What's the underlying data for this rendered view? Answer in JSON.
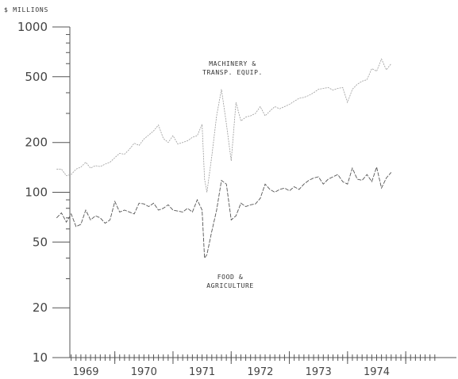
{
  "chart_data": {
    "type": "line",
    "unit_label": "$ MILLIONS",
    "title": "",
    "xlabel": "",
    "ylabel": "",
    "y_scale": "log",
    "ylim": [
      10,
      1000
    ],
    "y_ticks": [
      {
        "value": 1000,
        "label": "1000"
      },
      {
        "value": 500,
        "label": "500"
      },
      {
        "value": 200,
        "label": "200"
      },
      {
        "value": 100,
        "label": "100"
      },
      {
        "value": 50,
        "label": "50"
      },
      {
        "value": 20,
        "label": "20"
      },
      {
        "value": 10,
        "label": "10"
      }
    ],
    "x_tick_labels": [
      "1969",
      "1970",
      "1971",
      "1972",
      "1973",
      "1974"
    ],
    "x_range_years": [
      1968,
      1975
    ],
    "minor_ticks": "monthly",
    "grid": false,
    "series": [
      {
        "name": "MACHINERY & TRANSP. EQUIP.",
        "label_lines": [
          "MACHINERY &",
          "TRANSP. EQUIP."
        ],
        "style": "dotted",
        "color": "#9a9a9a",
        "x": [
          1968.5,
          1968.583,
          1968.667,
          1968.75,
          1968.833,
          1968.917,
          1969.0,
          1969.083,
          1969.167,
          1969.25,
          1969.333,
          1969.417,
          1969.5,
          1969.583,
          1969.667,
          1969.75,
          1969.833,
          1969.917,
          1970.0,
          1970.083,
          1970.167,
          1970.25,
          1970.333,
          1970.417,
          1970.5,
          1970.583,
          1970.667,
          1970.75,
          1970.833,
          1970.917,
          1971.0,
          1971.042,
          1971.083,
          1971.167,
          1971.25,
          1971.333,
          1971.417,
          1971.5,
          1971.583,
          1971.667,
          1971.75,
          1971.833,
          1971.917,
          1972.0,
          1972.083,
          1972.167,
          1972.25,
          1972.333,
          1972.417,
          1972.5,
          1972.583,
          1972.667,
          1972.75,
          1972.833,
          1972.917,
          1973.0,
          1973.083,
          1973.167,
          1973.25,
          1973.333,
          1973.417,
          1973.5,
          1973.583,
          1973.667,
          1973.75,
          1973.833,
          1973.917,
          1974.0,
          1974.083,
          1974.167,
          1974.25
        ],
        "values": [
          138,
          138,
          126,
          128,
          138,
          142,
          152,
          140,
          145,
          143,
          148,
          152,
          162,
          172,
          170,
          182,
          198,
          192,
          210,
          222,
          235,
          255,
          212,
          200,
          220,
          196,
          200,
          205,
          215,
          220,
          258,
          120,
          100,
          165,
          290,
          420,
          260,
          155,
          350,
          270,
          285,
          290,
          300,
          330,
          290,
          310,
          330,
          320,
          330,
          340,
          355,
          370,
          375,
          385,
          400,
          420,
          425,
          430,
          415,
          425,
          430,
          350,
          420,
          450,
          470,
          480,
          560,
          540,
          640,
          550,
          600
        ]
      },
      {
        "name": "FOOD & AGRICULTURE",
        "label_lines": [
          "FOOD &",
          "AGRICULTURE"
        ],
        "style": "dashed",
        "color": "#555555",
        "x": [
          1968.5,
          1968.583,
          1968.667,
          1968.75,
          1968.833,
          1968.917,
          1969.0,
          1969.083,
          1969.167,
          1969.25,
          1969.333,
          1969.417,
          1969.5,
          1969.583,
          1969.667,
          1969.75,
          1969.833,
          1969.917,
          1970.0,
          1970.083,
          1970.167,
          1970.25,
          1970.333,
          1970.417,
          1970.5,
          1970.583,
          1970.667,
          1970.75,
          1970.833,
          1970.917,
          1971.0,
          1971.042,
          1971.083,
          1971.167,
          1971.25,
          1971.333,
          1971.417,
          1971.5,
          1971.583,
          1971.667,
          1971.75,
          1971.833,
          1971.917,
          1972.0,
          1972.083,
          1972.167,
          1972.25,
          1972.333,
          1972.417,
          1972.5,
          1972.583,
          1972.667,
          1972.75,
          1972.833,
          1972.917,
          1973.0,
          1973.083,
          1973.167,
          1973.25,
          1973.333,
          1973.417,
          1973.5,
          1973.583,
          1973.667,
          1973.75,
          1973.833,
          1973.917,
          1974.0,
          1974.083,
          1974.167,
          1974.25
        ],
        "values": [
          70,
          75,
          66,
          74,
          62,
          64,
          78,
          68,
          72,
          70,
          65,
          68,
          88,
          76,
          78,
          76,
          74,
          86,
          85,
          82,
          86,
          78,
          80,
          84,
          78,
          77,
          76,
          80,
          76,
          90,
          78,
          40,
          42,
          58,
          78,
          118,
          112,
          68,
          72,
          86,
          82,
          84,
          85,
          92,
          112,
          104,
          100,
          104,
          106,
          102,
          108,
          104,
          112,
          118,
          122,
          124,
          112,
          120,
          124,
          128,
          116,
          112,
          140,
          120,
          118,
          128,
          116,
          142,
          106,
          122,
          132
        ]
      }
    ]
  }
}
